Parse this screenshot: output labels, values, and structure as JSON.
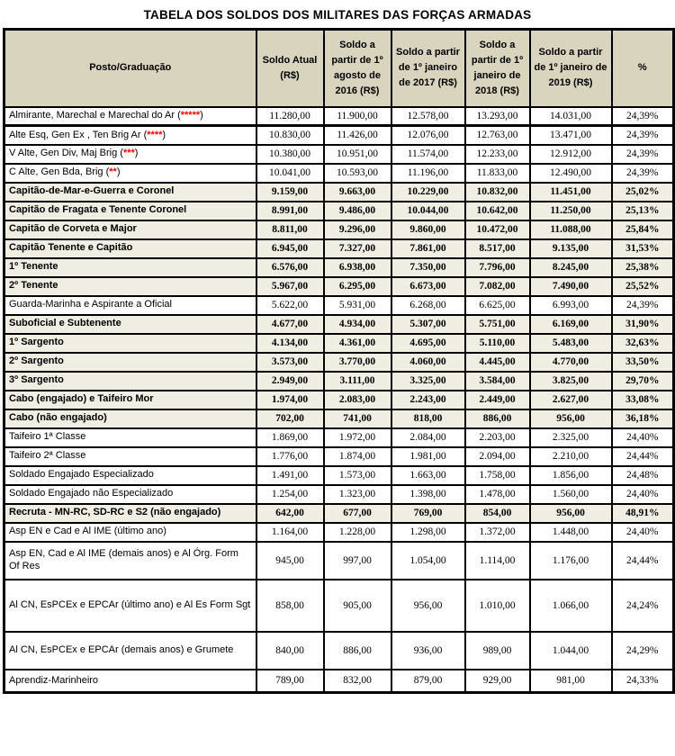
{
  "title": "TABELA DOS SOLDOS DOS MILITARES DAS FORÇAS ARMADAS",
  "colors": {
    "header_bg": "#d9d4bd",
    "highlight_bg": "#f0eee3",
    "row_bg": "#ffffff",
    "border": "#000000",
    "star": "#ff0000"
  },
  "table": {
    "columns": [
      "Posto/Graduação",
      "Soldo Atual (R$)",
      "Soldo a partir de 1º agosto de 2016 (R$)",
      "Soldo a partir de 1º janeiro de 2017 (R$)",
      "Soldo a partir de 1º janeiro de 2018 (R$)",
      "Soldo a partir de 1º janeiro de 2019 (R$)",
      "%"
    ],
    "rows": [
      {
        "label": "Almirante, Marechal e Marechal do Ar",
        "stars": "*****",
        "highlight": false,
        "values": [
          "11.280,00",
          "11.900,00",
          "12.578,00",
          "13.293,00",
          "14.031,00",
          "24,39%"
        ]
      },
      {
        "label": "Alte Esq, Gen Ex , Ten Brig Ar",
        "stars": "****",
        "highlight": false,
        "values": [
          "10.830,00",
          "11.426,00",
          "12.076,00",
          "12.763,00",
          "13.471,00",
          "24,39%"
        ]
      },
      {
        "label": "V Alte, Gen Div, Maj Brig",
        "stars": "***",
        "highlight": false,
        "values": [
          "10.380,00",
          "10.951,00",
          "11.574,00",
          "12.233,00",
          "12.912,00",
          "24,39%"
        ]
      },
      {
        "label": "C Alte, Gen Bda, Brig",
        "stars": "**",
        "highlight": false,
        "values": [
          "10.041,00",
          "10.593,00",
          "11.196,00",
          "11.833,00",
          "12.490,00",
          "24,39%"
        ]
      },
      {
        "label": "Capitão-de-Mar-e-Guerra e Coronel",
        "stars": "",
        "highlight": true,
        "values": [
          "9.159,00",
          "9.663,00",
          "10.229,00",
          "10.832,00",
          "11.451,00",
          "25,02%"
        ]
      },
      {
        "label": "Capitão de Fragata e Tenente Coronel",
        "stars": "",
        "highlight": true,
        "values": [
          "8.991,00",
          "9.486,00",
          "10.044,00",
          "10.642,00",
          "11.250,00",
          "25,13%"
        ]
      },
      {
        "label": "Capitão de Corveta e Major",
        "stars": "",
        "highlight": true,
        "values": [
          "8.811,00",
          "9.296,00",
          "9.860,00",
          "10.472,00",
          "11.088,00",
          "25,84%"
        ]
      },
      {
        "label": "Capitão Tenente e Capitão",
        "stars": "",
        "highlight": true,
        "values": [
          "6.945,00",
          "7.327,00",
          "7.861,00",
          "8.517,00",
          "9.135,00",
          "31,53%"
        ]
      },
      {
        "label": "1º Tenente",
        "stars": "",
        "highlight": true,
        "values": [
          "6.576,00",
          "6.938,00",
          "7.350,00",
          "7.796,00",
          "8.245,00",
          "25,38%"
        ]
      },
      {
        "label": "2º Tenente",
        "stars": "",
        "highlight": true,
        "values": [
          "5.967,00",
          "6.295,00",
          "6.673,00",
          "7.082,00",
          "7.490,00",
          "25,52%"
        ]
      },
      {
        "label": "Guarda-Marinha e Aspirante a Oficial",
        "stars": "",
        "highlight": false,
        "values": [
          "5.622,00",
          "5.931,00",
          "6.268,00",
          "6.625,00",
          "6.993,00",
          "24,39%"
        ]
      },
      {
        "label": "Suboficial e Subtenente",
        "stars": "",
        "highlight": true,
        "values": [
          "4.677,00",
          "4.934,00",
          "5.307,00",
          "5.751,00",
          "6.169,00",
          "31,90%"
        ]
      },
      {
        "label": "1º Sargento",
        "stars": "",
        "highlight": true,
        "values": [
          "4.134,00",
          "4.361,00",
          "4.695,00",
          "5.110,00",
          "5.483,00",
          "32,63%"
        ]
      },
      {
        "label": "2º Sargento",
        "stars": "",
        "highlight": true,
        "values": [
          "3.573,00",
          "3.770,00",
          "4.060,00",
          "4.445,00",
          "4.770,00",
          "33,50%"
        ]
      },
      {
        "label": "3º Sargento",
        "stars": "",
        "highlight": true,
        "values": [
          "2.949,00",
          "3.111,00",
          "3.325,00",
          "3.584,00",
          "3.825,00",
          "29,70%"
        ]
      },
      {
        "label": "Cabo (engajado) e Taifeiro Mor",
        "stars": "",
        "highlight": true,
        "values": [
          "1.974,00",
          "2.083,00",
          "2.243,00",
          "2.449,00",
          "2.627,00",
          "33,08%"
        ]
      },
      {
        "label": "Cabo (não engajado)",
        "stars": "",
        "highlight": true,
        "values": [
          "702,00",
          "741,00",
          "818,00",
          "886,00",
          "956,00",
          "36,18%"
        ]
      },
      {
        "label": "Taifeiro 1ª Classe",
        "stars": "",
        "highlight": false,
        "values": [
          "1.869,00",
          "1.972,00",
          "2.084,00",
          "2.203,00",
          "2.325,00",
          "24,40%"
        ]
      },
      {
        "label": "Taifeiro 2ª Classe",
        "stars": "",
        "highlight": false,
        "values": [
          "1.776,00",
          "1.874,00",
          "1.981,00",
          "2.094,00",
          "2.210,00",
          "24,44%"
        ]
      },
      {
        "label": "Soldado Engajado Especializado",
        "stars": "",
        "highlight": false,
        "values": [
          "1.491,00",
          "1.573,00",
          "1.663,00",
          "1.758,00",
          "1.856,00",
          "24,48%"
        ]
      },
      {
        "label": "Soldado Engajado não Especializado",
        "stars": "",
        "highlight": false,
        "values": [
          "1.254,00",
          "1.323,00",
          "1.398,00",
          "1.478,00",
          "1.560,00",
          "24,40%"
        ]
      },
      {
        "label": "Recruta - MN-RC, SD-RC e S2 (não engajado)",
        "stars": "",
        "highlight": true,
        "values": [
          "642,00",
          "677,00",
          "769,00",
          "854,00",
          "956,00",
          "48,91%"
        ]
      },
      {
        "label": "Asp EN e Cad e Al IME (último ano)",
        "stars": "",
        "highlight": false,
        "values": [
          "1.164,00",
          "1.228,00",
          "1.298,00",
          "1.372,00",
          "1.448,00",
          "24,40%"
        ]
      },
      {
        "label": "Asp EN, Cad e Al IME (demais anos) e Al Órg. Form Of Res",
        "stars": "",
        "highlight": false,
        "values": [
          "945,00",
          "997,00",
          "1.054,00",
          "1.114,00",
          "1.176,00",
          "24,44%"
        ]
      },
      {
        "label": "Al CN, EsPCEx e EPCAr (último ano) e Al Es Form Sgt",
        "stars": "",
        "highlight": false,
        "values": [
          "858,00",
          "905,00",
          "956,00",
          "1.010,00",
          "1.066,00",
          "24,24%"
        ]
      },
      {
        "label": "Al CN, EsPCEx e EPCAr (demais anos) e Grumete",
        "stars": "",
        "highlight": false,
        "values": [
          "840,00",
          "886,00",
          "936,00",
          "989,00",
          "1.044,00",
          "24,29%"
        ]
      },
      {
        "label": "Aprendiz-Marinheiro",
        "stars": "",
        "highlight": false,
        "values": [
          "789,00",
          "832,00",
          "879,00",
          "929,00",
          "981,00",
          "24,33%"
        ]
      }
    ]
  }
}
